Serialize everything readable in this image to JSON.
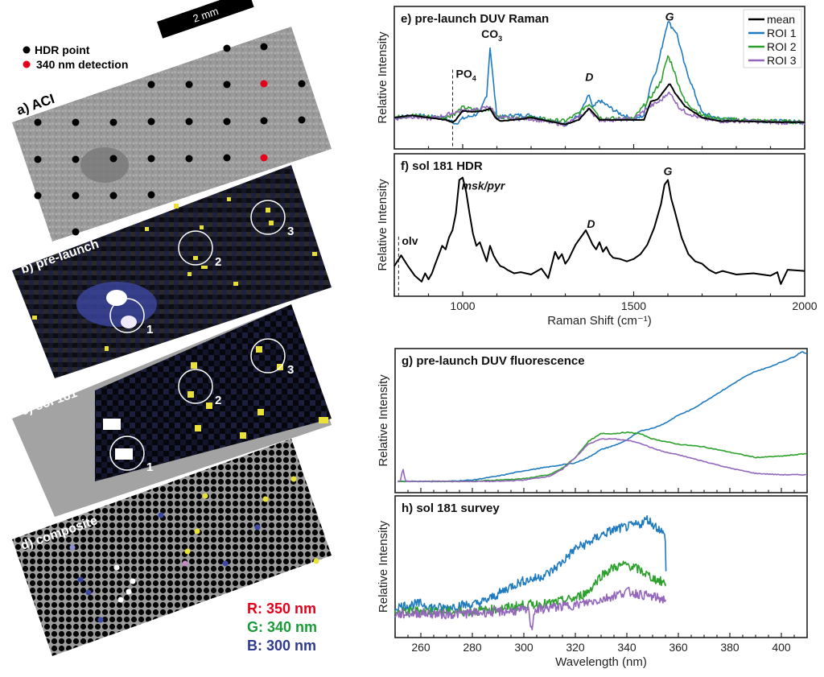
{
  "legend_points": {
    "items": [
      {
        "label": "HDR point",
        "color": "#000000"
      },
      {
        "label": "340 nm detection",
        "color": "#e3001b"
      }
    ]
  },
  "scale_bar": {
    "label": "2 mm"
  },
  "image_panels": [
    {
      "id": "a",
      "label": "a) ACI"
    },
    {
      "id": "b",
      "label": "b) pre-launch",
      "rois": [
        "1",
        "2",
        "3"
      ]
    },
    {
      "id": "c",
      "label": "c) sol 181",
      "rois": [
        "1",
        "2",
        "3"
      ]
    },
    {
      "id": "d",
      "label": "d) composite"
    }
  ],
  "channel_legend": [
    {
      "label": "R: 350 nm",
      "color": "#e3001b"
    },
    {
      "label": "G: 340 nm",
      "color": "#1a9a3a"
    },
    {
      "label": "B: 300 nm",
      "color": "#2e3a8c"
    }
  ],
  "colors": {
    "mean": "#000000",
    "roi1": "#1f7bc0",
    "roi2": "#2ca02c",
    "roi3": "#9467bd"
  },
  "chart_data": [
    {
      "id": "e",
      "type": "line",
      "title": "e) pre-launch DUV Raman",
      "xlabel": "Raman Shift (cm⁻¹)",
      "ylabel": "Relative Intensity",
      "xlim": [
        800,
        2000
      ],
      "ylim": [
        0,
        1
      ],
      "legend": {
        "position": "top-right",
        "entries": [
          "mean",
          "ROI 1",
          "ROI 2",
          "ROI 3"
        ]
      },
      "annotations": [
        {
          "text": "CO",
          "sub": "3",
          "x": 1085,
          "y": 0.8
        },
        {
          "text": "PO",
          "sub": "4",
          "x": 980,
          "y": 0.45,
          "vline": true
        },
        {
          "text": "D",
          "x": 1370,
          "y": 0.42,
          "italic": true
        },
        {
          "text": "G",
          "x": 1605,
          "y": 0.95,
          "italic": true
        }
      ],
      "series": [
        {
          "name": "mean",
          "x": [
            800,
            850,
            900,
            950,
            970,
            980,
            1000,
            1030,
            1060,
            1080,
            1095,
            1110,
            1150,
            1200,
            1250,
            1300,
            1340,
            1360,
            1370,
            1385,
            1400,
            1450,
            1500,
            1530,
            1550,
            1570,
            1590,
            1605,
            1620,
            1650,
            1700,
            1750,
            1800,
            1900,
            2000
          ],
          "y": [
            0.1,
            0.12,
            0.1,
            0.08,
            0.06,
            0.08,
            0.16,
            0.15,
            0.16,
            0.18,
            0.1,
            0.07,
            0.08,
            0.1,
            0.07,
            0.04,
            0.08,
            0.15,
            0.18,
            0.13,
            0.08,
            0.08,
            0.08,
            0.08,
            0.24,
            0.26,
            0.34,
            0.4,
            0.32,
            0.2,
            0.1,
            0.07,
            0.07,
            0.06,
            0.06
          ]
        },
        {
          "name": "ROI 1",
          "x": [
            800,
            850,
            900,
            950,
            980,
            1000,
            1050,
            1070,
            1080,
            1090,
            1100,
            1150,
            1200,
            1250,
            1300,
            1340,
            1360,
            1370,
            1380,
            1400,
            1430,
            1450,
            1500,
            1530,
            1550,
            1570,
            1590,
            1600,
            1610,
            1625,
            1650,
            1680,
            1700,
            1750,
            1800,
            1900,
            2000
          ],
          "y": [
            0.1,
            0.12,
            0.11,
            0.09,
            0.05,
            0.09,
            0.14,
            0.3,
            0.72,
            0.4,
            0.1,
            0.12,
            0.12,
            0.08,
            0.04,
            0.12,
            0.24,
            0.3,
            0.18,
            0.25,
            0.19,
            0.15,
            0.08,
            0.12,
            0.4,
            0.55,
            0.82,
            0.95,
            0.9,
            0.85,
            0.55,
            0.3,
            0.14,
            0.09,
            0.08,
            0.07,
            0.06
          ]
        },
        {
          "name": "ROI 2",
          "x": [
            800,
            850,
            900,
            950,
            980,
            1000,
            1050,
            1080,
            1100,
            1150,
            1200,
            1250,
            1300,
            1340,
            1360,
            1370,
            1385,
            1400,
            1450,
            1500,
            1550,
            1580,
            1600,
            1610,
            1630,
            1650,
            1700,
            1750,
            1800,
            1900,
            2000
          ],
          "y": [
            0.1,
            0.12,
            0.11,
            0.1,
            0.14,
            0.19,
            0.16,
            0.18,
            0.11,
            0.1,
            0.1,
            0.08,
            0.07,
            0.14,
            0.2,
            0.22,
            0.18,
            0.1,
            0.09,
            0.09,
            0.28,
            0.42,
            0.64,
            0.58,
            0.4,
            0.24,
            0.12,
            0.09,
            0.08,
            0.07,
            0.06
          ]
        },
        {
          "name": "ROI 3",
          "x": [
            800,
            850,
            900,
            950,
            980,
            1000,
            1050,
            1080,
            1100,
            1150,
            1200,
            1250,
            1300,
            1340,
            1360,
            1370,
            1385,
            1400,
            1450,
            1500,
            1550,
            1580,
            1600,
            1615,
            1630,
            1650,
            1700,
            1750,
            1800,
            1900,
            2000
          ],
          "y": [
            0.09,
            0.11,
            0.09,
            0.12,
            0.15,
            0.16,
            0.17,
            0.2,
            0.1,
            0.09,
            0.09,
            0.06,
            0.04,
            0.1,
            0.15,
            0.18,
            0.12,
            0.08,
            0.08,
            0.09,
            0.2,
            0.25,
            0.32,
            0.28,
            0.2,
            0.15,
            0.09,
            0.07,
            0.07,
            0.06,
            0.05
          ]
        }
      ]
    },
    {
      "id": "f",
      "type": "line",
      "title": "f) sol 181 HDR",
      "xlabel": "Raman Shift (cm⁻¹)",
      "ylabel": "Relative Intensity",
      "xlim": [
        800,
        2000
      ],
      "xticks": [
        1000,
        1500,
        2000
      ],
      "ylim": [
        0,
        1
      ],
      "annotations": [
        {
          "text": "msk/pyr",
          "x": 1060,
          "y": 0.82,
          "italic": true
        },
        {
          "text": "olv",
          "x": 822,
          "y": 0.36,
          "vline": true
        },
        {
          "text": "D",
          "x": 1375,
          "y": 0.5,
          "italic": true
        },
        {
          "text": "G",
          "x": 1600,
          "y": 0.94,
          "italic": true
        }
      ],
      "series": [
        {
          "name": "HDR",
          "x": [
            800,
            820,
            840,
            860,
            880,
            890,
            900,
            910,
            920,
            940,
            950,
            960,
            970,
            980,
            990,
            1000,
            1010,
            1020,
            1030,
            1040,
            1050,
            1060,
            1070,
            1080,
            1090,
            1100,
            1110,
            1120,
            1130,
            1150,
            1170,
            1200,
            1230,
            1250,
            1270,
            1280,
            1290,
            1300,
            1310,
            1320,
            1330,
            1340,
            1350,
            1360,
            1370,
            1380,
            1390,
            1400,
            1410,
            1420,
            1430,
            1440,
            1460,
            1480,
            1500,
            1520,
            1540,
            1560,
            1580,
            1590,
            1600,
            1610,
            1620,
            1640,
            1660,
            1680,
            1700,
            1720,
            1740,
            1760,
            1800,
            1850,
            1900,
            1920,
            1930,
            1950,
            2000
          ],
          "y": [
            0.18,
            0.27,
            0.18,
            0.1,
            0.05,
            0.12,
            0.07,
            0.12,
            0.2,
            0.35,
            0.32,
            0.42,
            0.48,
            0.62,
            0.9,
            0.92,
            0.8,
            0.62,
            0.45,
            0.35,
            0.38,
            0.3,
            0.22,
            0.35,
            0.27,
            0.22,
            0.18,
            0.17,
            0.15,
            0.12,
            0.13,
            0.11,
            0.16,
            0.08,
            0.3,
            0.24,
            0.28,
            0.2,
            0.24,
            0.3,
            0.36,
            0.4,
            0.44,
            0.48,
            0.42,
            0.36,
            0.32,
            0.38,
            0.3,
            0.34,
            0.28,
            0.25,
            0.24,
            0.22,
            0.24,
            0.28,
            0.36,
            0.5,
            0.7,
            0.86,
            0.9,
            0.74,
            0.64,
            0.42,
            0.28,
            0.22,
            0.2,
            0.15,
            0.12,
            0.14,
            0.11,
            0.12,
            0.1,
            0.13,
            0.03,
            0.15,
            0.14
          ]
        }
      ]
    },
    {
      "id": "g",
      "type": "line",
      "title": "g) pre-launch DUV fluorescence",
      "xlabel": "",
      "ylabel": "Relative Intensity",
      "xlim": [
        250,
        410
      ],
      "ylim": [
        0,
        1
      ],
      "series": [
        {
          "name": "ROI 1",
          "x": [
            251,
            260,
            270,
            280,
            290,
            300,
            310,
            320,
            325,
            330,
            335,
            340,
            345,
            350,
            355,
            360,
            365,
            370,
            375,
            380,
            385,
            390,
            395,
            400,
            405,
            408,
            410
          ],
          "y": [
            0.02,
            0.02,
            0.02,
            0.03,
            0.06,
            0.1,
            0.13,
            0.16,
            0.2,
            0.26,
            0.29,
            0.33,
            0.4,
            0.42,
            0.46,
            0.52,
            0.56,
            0.62,
            0.68,
            0.74,
            0.8,
            0.85,
            0.88,
            0.92,
            0.96,
            1.0,
            0.98
          ]
        },
        {
          "name": "ROI 2",
          "x": [
            251,
            260,
            270,
            280,
            290,
            300,
            310,
            315,
            320,
            325,
            330,
            335,
            340,
            345,
            350,
            355,
            360,
            370,
            380,
            390,
            400,
            410
          ],
          "y": [
            0.02,
            0.02,
            0.02,
            0.02,
            0.03,
            0.04,
            0.07,
            0.12,
            0.2,
            0.32,
            0.38,
            0.38,
            0.39,
            0.38,
            0.34,
            0.32,
            0.3,
            0.28,
            0.24,
            0.2,
            0.21,
            0.23
          ]
        },
        {
          "name": "ROI 3",
          "x": [
            251,
            252,
            253,
            254,
            260,
            270,
            280,
            290,
            300,
            310,
            315,
            320,
            325,
            330,
            335,
            340,
            345,
            350,
            355,
            360,
            370,
            380,
            390,
            400,
            410
          ],
          "y": [
            0.02,
            0.02,
            0.12,
            0.02,
            0.02,
            0.02,
            0.02,
            0.02,
            0.03,
            0.06,
            0.11,
            0.2,
            0.3,
            0.34,
            0.34,
            0.33,
            0.31,
            0.27,
            0.24,
            0.22,
            0.17,
            0.12,
            0.08,
            0.07,
            0.07
          ]
        }
      ]
    },
    {
      "id": "h",
      "type": "line",
      "title": "h) sol 181 survey",
      "xlabel": "Wavelength (nm)",
      "ylabel": "Relative Intensity",
      "xlim": [
        250,
        410
      ],
      "xticks": [
        260,
        280,
        300,
        320,
        340,
        360,
        380,
        400
      ],
      "ylim": [
        0,
        1
      ],
      "series": [
        {
          "name": "ROI 1",
          "x": [
            250,
            255,
            260,
            265,
            270,
            275,
            280,
            285,
            290,
            295,
            300,
            305,
            310,
            315,
            320,
            325,
            330,
            335,
            340,
            345,
            348,
            350,
            353,
            355,
            355.2
          ],
          "y": [
            0.18,
            0.2,
            0.21,
            0.18,
            0.18,
            0.2,
            0.2,
            0.23,
            0.28,
            0.34,
            0.38,
            0.4,
            0.44,
            0.52,
            0.62,
            0.66,
            0.72,
            0.76,
            0.78,
            0.8,
            0.84,
            0.8,
            0.76,
            0.7,
            0.45
          ]
        },
        {
          "name": "ROI 2",
          "x": [
            250,
            260,
            270,
            280,
            290,
            300,
            310,
            315,
            320,
            325,
            330,
            335,
            340,
            345,
            350,
            355
          ],
          "y": [
            0.14,
            0.16,
            0.15,
            0.15,
            0.17,
            0.2,
            0.21,
            0.23,
            0.25,
            0.3,
            0.42,
            0.48,
            0.5,
            0.46,
            0.4,
            0.36
          ]
        },
        {
          "name": "ROI 3",
          "x": [
            250,
            260,
            270,
            280,
            290,
            300,
            302,
            303,
            304,
            310,
            320,
            330,
            335,
            340,
            345,
            350,
            355
          ],
          "y": [
            0.13,
            0.14,
            0.13,
            0.14,
            0.15,
            0.16,
            0.16,
            0.0,
            0.16,
            0.18,
            0.2,
            0.24,
            0.27,
            0.3,
            0.28,
            0.26,
            0.24
          ]
        }
      ]
    }
  ]
}
